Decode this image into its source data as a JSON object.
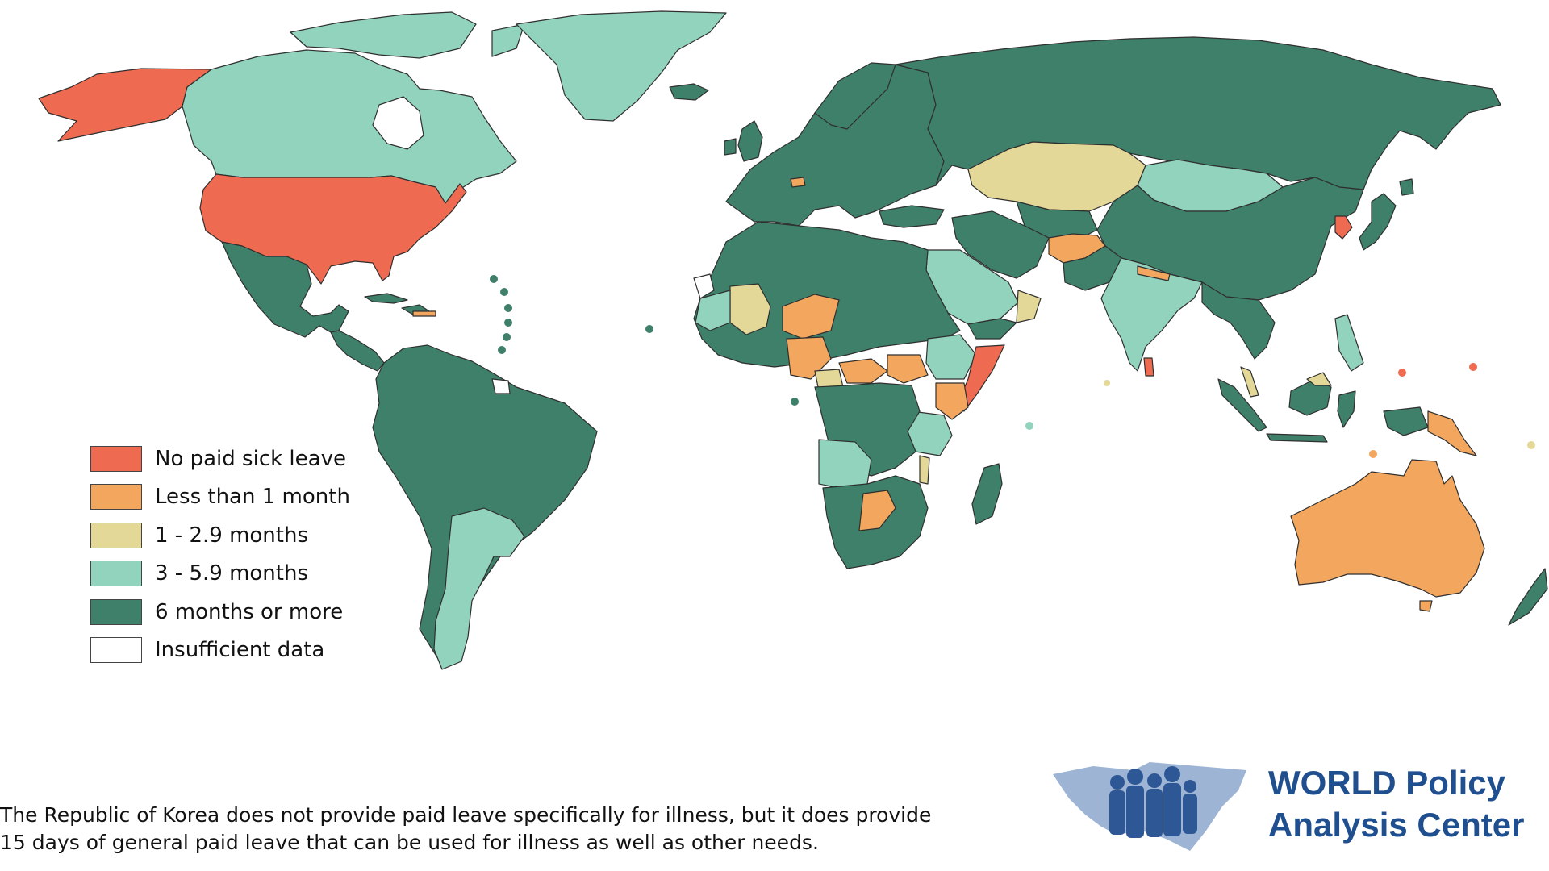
{
  "legend": {
    "items": [
      {
        "label": "No paid sick leave",
        "color": "#ee6a50"
      },
      {
        "label": "Less than 1 month",
        "color": "#f2a65e"
      },
      {
        "label": "1 - 2.9 months",
        "color": "#e3d898"
      },
      {
        "label": "3 - 5.9 months",
        "color": "#92d3bd"
      },
      {
        "label": "6 months or more",
        "color": "#3e806a"
      },
      {
        "label": "Insufficient data",
        "color": "#ffffff"
      }
    ]
  },
  "footnote": "The Republic of Korea does not provide paid leave specifically for illness, but it does provide 15 days of general paid leave that can be used for illness as well as other needs.",
  "logo": {
    "line1": "WORLD Policy",
    "line2": "Analysis Center",
    "text_color": "#1f4f8f"
  },
  "map_regions": [
    {
      "name": "United States",
      "category": "No paid sick leave"
    },
    {
      "name": "Alaska",
      "category": "No paid sick leave"
    },
    {
      "name": "Canada",
      "category": "3 - 5.9 months"
    },
    {
      "name": "Greenland",
      "category": "3 - 5.9 months"
    },
    {
      "name": "Mexico",
      "category": "6 months or more"
    },
    {
      "name": "South America",
      "category": "6 months or more"
    },
    {
      "name": "Argentina",
      "category": "3 - 5.9 months"
    },
    {
      "name": "Europe",
      "category": "6 months or more"
    },
    {
      "name": "Russia",
      "category": "6 months or more"
    },
    {
      "name": "Kazakhstan",
      "category": "1 - 2.9 months"
    },
    {
      "name": "Mongolia",
      "category": "3 - 5.9 months"
    },
    {
      "name": "China",
      "category": "6 months or more"
    },
    {
      "name": "Republic of Korea",
      "category": "No paid sick leave"
    },
    {
      "name": "Japan",
      "category": "6 months or more"
    },
    {
      "name": "India",
      "category": "3 - 5.9 months"
    },
    {
      "name": "Afghanistan",
      "category": "Less than 1 month"
    },
    {
      "name": "Saudi Arabia",
      "category": "3 - 5.9 months"
    },
    {
      "name": "Somalia",
      "category": "No paid sick leave"
    },
    {
      "name": "Australia",
      "category": "Less than 1 month"
    },
    {
      "name": "Papua New Guinea",
      "category": "Less than 1 month"
    },
    {
      "name": "Sri Lanka",
      "category": "No paid sick leave"
    }
  ]
}
